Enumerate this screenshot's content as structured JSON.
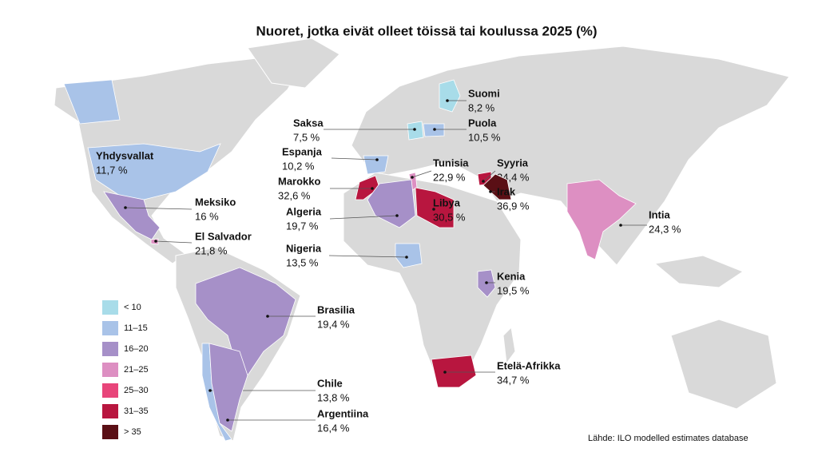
{
  "title": "Nuoret, jotka eivät olleet töissä tai koulussa 2025 (%)",
  "countries": [
    {
      "name": "Suomi",
      "value": "8,2 %",
      "color": "#a8dce9"
    },
    {
      "name": "Saksa",
      "value": "7,5 %",
      "color": "#a8dce9"
    },
    {
      "name": "Puola",
      "value": "10,5 %",
      "color": "#a9c3e8"
    },
    {
      "name": "Espanja",
      "value": "10,2 %",
      "color": "#a9c3e8"
    },
    {
      "name": "Yhdysvallat",
      "value": "11,7 %",
      "color": "#a9c3e8"
    },
    {
      "name": "Tunisia",
      "value": "22,9 %",
      "color": "#dd8fc2"
    },
    {
      "name": "Syyria",
      "value": "34,4 %",
      "color": "#b8163f"
    },
    {
      "name": "Marokko",
      "value": "32,6 %",
      "color": "#b8163f"
    },
    {
      "name": "Irak",
      "value": "36,9 %",
      "color": "#5a0f15"
    },
    {
      "name": "Meksiko",
      "value": "16 %",
      "color": "#a690c8"
    },
    {
      "name": "Libya",
      "value": "30,5 %",
      "color": "#b8163f"
    },
    {
      "name": "Algeria",
      "value": "19,7 %",
      "color": "#a690c8"
    },
    {
      "name": "Intia",
      "value": "24,3 %",
      "color": "#dd8fc2"
    },
    {
      "name": "El Salvador",
      "value": "21,8 %",
      "color": "#dd8fc2"
    },
    {
      "name": "Nigeria",
      "value": "13,5 %",
      "color": "#a9c3e8"
    },
    {
      "name": "Kenia",
      "value": "19,5 %",
      "color": "#a690c8"
    },
    {
      "name": "Brasilia",
      "value": "19,4 %",
      "color": "#a690c8"
    },
    {
      "name": "Etelä-Afrikka",
      "value": "34,7 %",
      "color": "#b8163f"
    },
    {
      "name": "Chile",
      "value": "13,8 %",
      "color": "#a9c3e8"
    },
    {
      "name": "Argentiina",
      "value": "16,4 %",
      "color": "#a690c8"
    }
  ],
  "legend": [
    {
      "label": "< 10",
      "color": "#a8dce9"
    },
    {
      "label": "11–15",
      "color": "#a9c3e8"
    },
    {
      "label": "16–20",
      "color": "#a690c8"
    },
    {
      "label": "21–25",
      "color": "#dd8fc2"
    },
    {
      "label": "25–30",
      "color": "#e8457a"
    },
    {
      "label": "31–35",
      "color": "#b8163f"
    },
    {
      "label": "> 35",
      "color": "#5a0f15"
    }
  ],
  "source": "Lähde: ILO modelled estimates database"
}
